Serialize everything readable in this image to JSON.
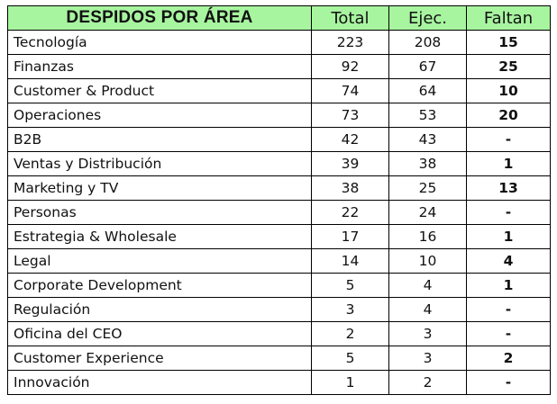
{
  "table": {
    "headers": {
      "area": "DESPIDOS POR ÁREA",
      "total": "Total",
      "ejec": "Ejec.",
      "faltan": "Faltan"
    },
    "header_bg": "#a8f5a0",
    "rows": [
      {
        "area": "Tecnología",
        "total": "223",
        "ejec": "208",
        "faltan": "15"
      },
      {
        "area": "Finanzas",
        "total": "92",
        "ejec": "67",
        "faltan": "25"
      },
      {
        "area": "Customer & Product",
        "total": "74",
        "ejec": "64",
        "faltan": "10"
      },
      {
        "area": "Operaciones",
        "total": "73",
        "ejec": "53",
        "faltan": "20"
      },
      {
        "area": "B2B",
        "total": "42",
        "ejec": "43",
        "faltan": "-"
      },
      {
        "area": "Ventas y Distribución",
        "total": "39",
        "ejec": "38",
        "faltan": "1"
      },
      {
        "area": "Marketing y TV",
        "total": "38",
        "ejec": "25",
        "faltan": "13"
      },
      {
        "area": "Personas",
        "total": "22",
        "ejec": "24",
        "faltan": "-"
      },
      {
        "area": "Estrategia & Wholesale",
        "total": "17",
        "ejec": "16",
        "faltan": "1"
      },
      {
        "area": "Legal",
        "total": "14",
        "ejec": "10",
        "faltan": "4"
      },
      {
        "area": "Corporate Development",
        "total": "5",
        "ejec": "4",
        "faltan": "1"
      },
      {
        "area": "Regulación",
        "total": "3",
        "ejec": "4",
        "faltan": "-"
      },
      {
        "area": "Oficina del CEO",
        "total": "2",
        "ejec": "3",
        "faltan": "-"
      },
      {
        "area": "Customer Experience",
        "total": "5",
        "ejec": "3",
        "faltan": "2"
      },
      {
        "area": "Innovación",
        "total": "1",
        "ejec": "2",
        "faltan": "-"
      }
    ]
  }
}
